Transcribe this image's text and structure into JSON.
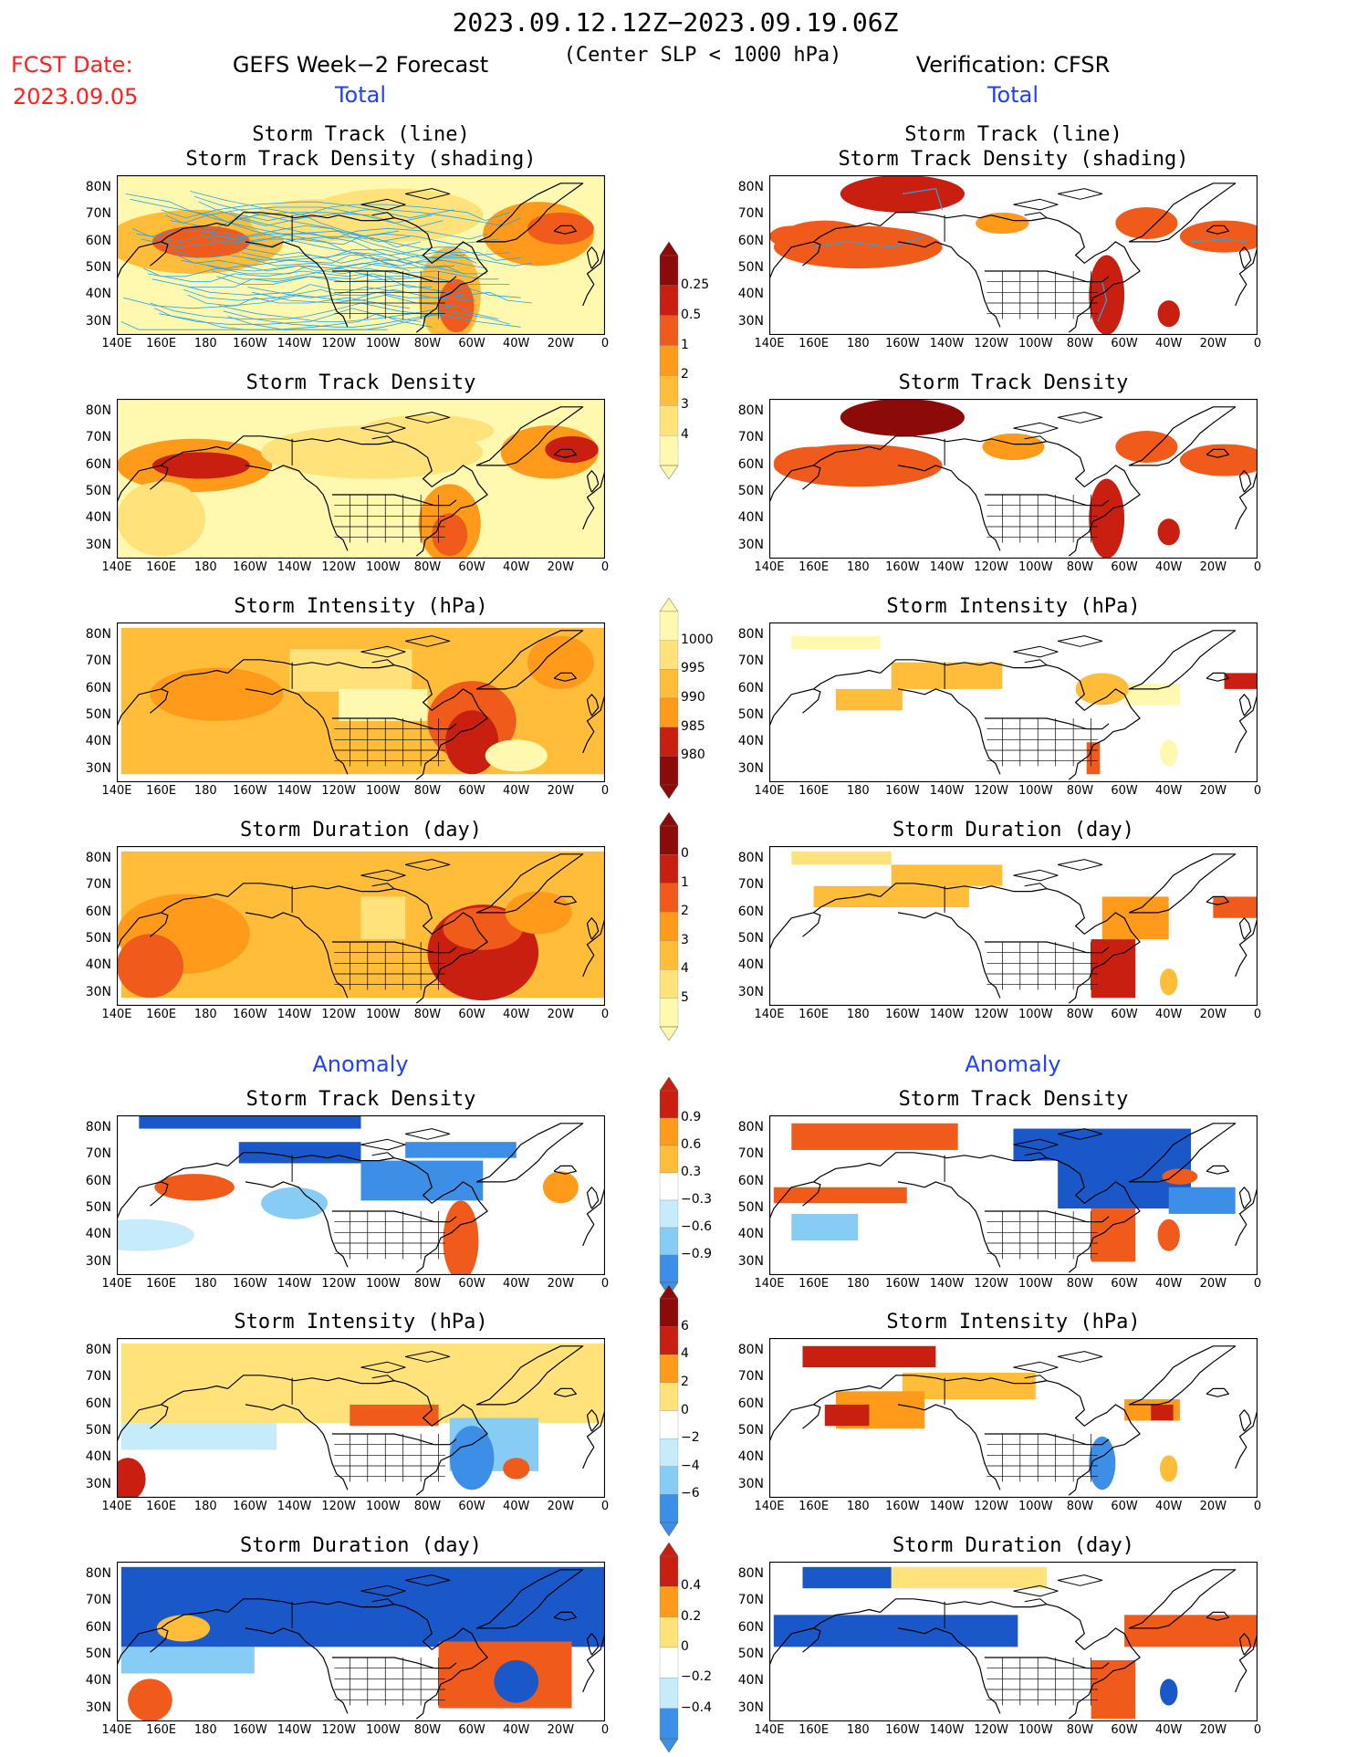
{
  "header": {
    "date_range": "2023.09.12.12Z−2023.09.19.06Z",
    "fcst_label": "FCST Date:",
    "fcst_date": "2023.09.05",
    "left_title": "GEFS Week−2 Forecast",
    "subtitle": "(Center SLP < 1000 hPa)",
    "right_title": "Verification: CFSR",
    "total_label": "Total",
    "anomaly_label": "Anomaly"
  },
  "panel_titles": {
    "track_line": "Storm Track (line)",
    "track_density_shading": "Storm Track Density (shading)",
    "density": "Storm Track Density",
    "intensity": "Storm Intensity (hPa)",
    "duration": "Storm Duration (day)"
  },
  "axes": {
    "lat_labels": [
      "80N",
      "70N",
      "60N",
      "50N",
      "40N",
      "30N"
    ],
    "lon_labels": [
      "140E",
      "160E",
      "180",
      "160W",
      "140W",
      "120W",
      "100W",
      "80W",
      "60W",
      "40W",
      "20W",
      "0"
    ]
  },
  "colorbars": {
    "total_density": [
      "0.25",
      "0.5",
      "1",
      "2",
      "3",
      "4"
    ],
    "total_intensity": [
      "1000",
      "995",
      "990",
      "985",
      "980"
    ],
    "total_duration": [
      "0",
      "1",
      "2",
      "3",
      "4",
      "5"
    ],
    "anom_density": [
      "0.9",
      "0.6",
      "0.3",
      "−0.3",
      "−0.6",
      "−0.9"
    ],
    "anom_intensity": [
      "6",
      "4",
      "2",
      "0",
      "−2",
      "−4",
      "−6"
    ],
    "anom_duration": [
      "0.4",
      "0.2",
      "0",
      "−0.2",
      "−0.4"
    ]
  },
  "colors": {
    "title_red": "#ff2020",
    "section_blue": "#2040ff",
    "track_line": "#29a3e8",
    "warm": [
      "#fff9b0",
      "#ffe27a",
      "#ffbd3a",
      "#ff9a1a",
      "#f05a1a",
      "#c81f10",
      "#8c0a08"
    ],
    "cool": [
      "#c6ecfb",
      "#86ccf5",
      "#3d8ee6",
      "#1a57c8"
    ]
  }
}
